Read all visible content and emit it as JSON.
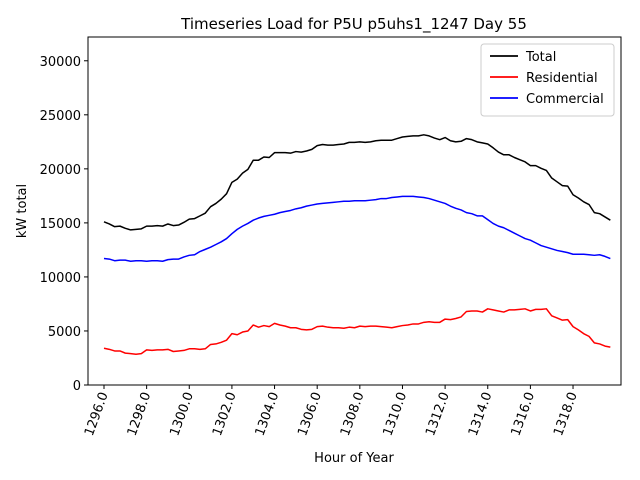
{
  "chart_data": {
    "type": "line",
    "title": "Timeseries Load for P5U p5uhs1_1247  Day 55",
    "xlabel": "Hour of Year",
    "ylabel": "kW total",
    "xlim": [
      1295.25,
      1320.25
    ],
    "ylim": [
      0,
      32200
    ],
    "x_ticks": [
      1296,
      1298,
      1300,
      1302,
      1304,
      1306,
      1308,
      1310,
      1312,
      1314,
      1316,
      1318
    ],
    "x_tick_labels": [
      "1296.0",
      "1298.0",
      "1300.0",
      "1302.0",
      "1304.0",
      "1306.0",
      "1308.0",
      "1310.0",
      "1312.0",
      "1314.0",
      "1316.0",
      "1318.0"
    ],
    "y_ticks": [
      0,
      5000,
      10000,
      15000,
      20000,
      25000,
      30000
    ],
    "y_tick_labels": [
      "0",
      "5000",
      "10000",
      "15000",
      "20000",
      "25000",
      "30000"
    ],
    "grid": false,
    "legend_position": "top-right",
    "x_start": 1296.0,
    "x_step": 0.25,
    "series": [
      {
        "name": "Total",
        "color": "#000000",
        "values": [
          15100,
          14900,
          14650,
          14700,
          14500,
          14350,
          14400,
          14450,
          14700,
          14700,
          14750,
          14700,
          14900,
          14750,
          14800,
          15050,
          15350,
          15400,
          15650,
          15900,
          16500,
          16800,
          17200,
          17700,
          18750,
          19050,
          19600,
          19950,
          20800,
          20800,
          21100,
          21050,
          21500,
          21500,
          21500,
          21450,
          21600,
          21550,
          21650,
          21800,
          22150,
          22250,
          22200,
          22200,
          22250,
          22300,
          22450,
          22450,
          22500,
          22450,
          22500,
          22600,
          22650,
          22650,
          22650,
          22800,
          22950,
          23000,
          23050,
          23050,
          23150,
          23050,
          22850,
          22700,
          22900,
          22600,
          22500,
          22550,
          22800,
          22700,
          22500,
          22400,
          22300,
          21950,
          21550,
          21300,
          21300,
          21050,
          20850,
          20650,
          20300,
          20300,
          20050,
          19850,
          19150,
          18800,
          18450,
          18400,
          17600,
          17300,
          16950,
          16700,
          15950,
          15850,
          15550,
          15250
        ]
      },
      {
        "name": "Residential",
        "color": "#ff0000",
        "values": [
          3400,
          3300,
          3150,
          3150,
          2950,
          2900,
          2850,
          2900,
          3250,
          3200,
          3250,
          3250,
          3300,
          3100,
          3150,
          3200,
          3350,
          3350,
          3300,
          3350,
          3750,
          3800,
          3950,
          4150,
          4750,
          4650,
          4900,
          5000,
          5550,
          5350,
          5500,
          5400,
          5700,
          5550,
          5450,
          5300,
          5300,
          5150,
          5100,
          5150,
          5400,
          5450,
          5350,
          5300,
          5300,
          5250,
          5350,
          5300,
          5450,
          5400,
          5450,
          5450,
          5400,
          5350,
          5300,
          5400,
          5500,
          5550,
          5650,
          5650,
          5800,
          5850,
          5800,
          5800,
          6100,
          6050,
          6150,
          6300,
          6800,
          6850,
          6850,
          6750,
          7050,
          6950,
          6850,
          6750,
          6950,
          6950,
          7000,
          7050,
          6850,
          7000,
          7000,
          7050,
          6400,
          6200,
          6000,
          6050,
          5400,
          5100,
          4750,
          4500,
          3900,
          3800,
          3600,
          3500
        ]
      },
      {
        "name": "Commercial",
        "color": "#0000ff",
        "values": [
          11700,
          11650,
          11500,
          11550,
          11550,
          11450,
          11500,
          11500,
          11450,
          11500,
          11500,
          11450,
          11600,
          11650,
          11650,
          11850,
          12000,
          12050,
          12350,
          12550,
          12750,
          13000,
          13250,
          13550,
          14000,
          14400,
          14700,
          14950,
          15250,
          15450,
          15600,
          15700,
          15800,
          15950,
          16050,
          16150,
          16300,
          16400,
          16550,
          16650,
          16750,
          16800,
          16850,
          16900,
          16950,
          17000,
          17000,
          17050,
          17050,
          17050,
          17100,
          17150,
          17250,
          17250,
          17350,
          17400,
          17450,
          17450,
          17450,
          17400,
          17350,
          17250,
          17100,
          16950,
          16800,
          16550,
          16350,
          16200,
          15950,
          15850,
          15650,
          15650,
          15300,
          14950,
          14700,
          14550,
          14300,
          14050,
          13800,
          13550,
          13400,
          13150,
          12900,
          12750,
          12600,
          12450,
          12350,
          12250,
          12100,
          12100,
          12100,
          12050,
          12000,
          12050,
          11900,
          11700
        ]
      }
    ]
  }
}
